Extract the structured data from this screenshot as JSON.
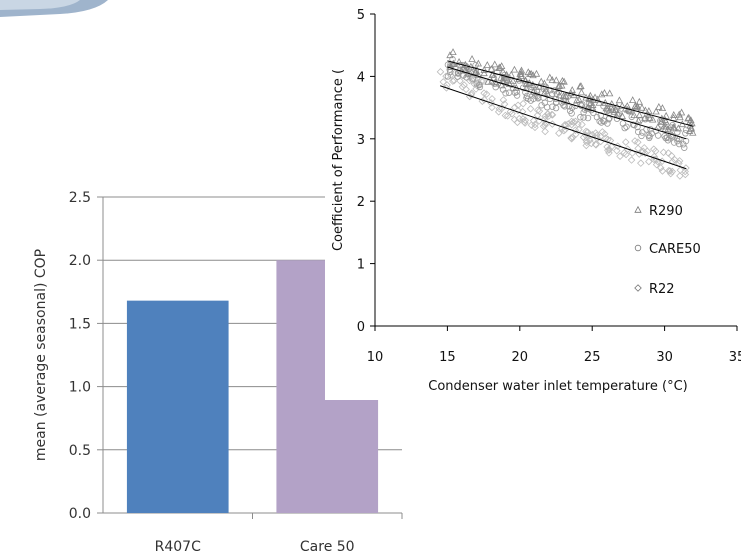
{
  "chart_data": [
    {
      "type": "bar",
      "ylabel": "mean (average seasonal) COP",
      "categories": [
        "R407C",
        "Care 50"
      ],
      "values": [
        1.68,
        2.0
      ],
      "ylim": [
        0,
        2.5
      ],
      "yticks": [
        "0.0",
        "0.5",
        "1.0",
        "1.5",
        "2.0",
        "2.5"
      ],
      "grid": true,
      "colors": [
        "#4f81bd",
        "#b3a2c7"
      ]
    },
    {
      "type": "scatter",
      "xlabel": "Condenser water inlet temperature (°C)",
      "ylabel": "Coefficient of Performance (",
      "xlim": [
        10,
        35
      ],
      "ylim": [
        0,
        5
      ],
      "xticks": [
        "10",
        "15",
        "20",
        "25",
        "30",
        "35"
      ],
      "yticks": [
        "0",
        "1",
        "2",
        "3",
        "4",
        "5"
      ],
      "grid": false,
      "legend_position": "lower-right",
      "series": [
        {
          "name": "R290",
          "marker": "triangle",
          "color": "#888888",
          "x_range": [
            15,
            32
          ],
          "fit_line": [
            [
              15,
              4.25
            ],
            [
              32,
              3.2
            ]
          ]
        },
        {
          "name": "CARE50",
          "marker": "circle",
          "color": "#999999",
          "x_range": [
            15,
            31.5
          ],
          "fit_line": [
            [
              15,
              4.15
            ],
            [
              31.5,
              3.0
            ]
          ]
        },
        {
          "name": "R22",
          "marker": "diamond",
          "color": "#bbbbbb",
          "x_range": [
            14.5,
            31.5
          ],
          "fit_line": [
            [
              14.5,
              3.85
            ],
            [
              31.5,
              2.52
            ]
          ]
        }
      ]
    }
  ]
}
